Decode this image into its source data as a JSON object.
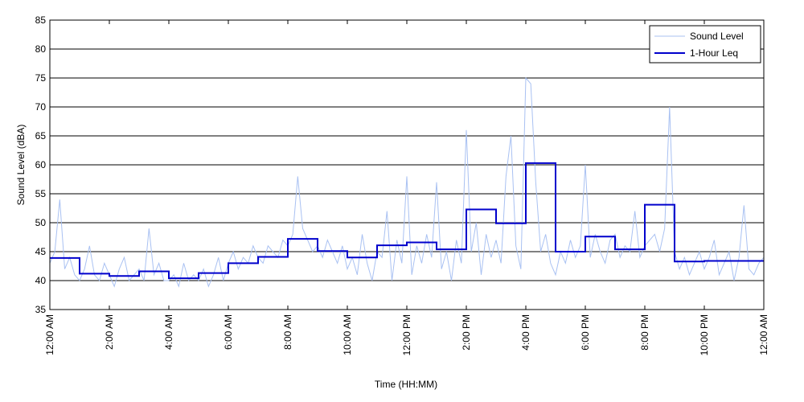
{
  "chart_data": {
    "type": "line",
    "xlabel": "Time (HH:MM)",
    "ylabel": "Sound Level (dBA)",
    "xlim": [
      0,
      1440
    ],
    "ylim": [
      35,
      85
    ],
    "yticks": [
      35,
      40,
      45,
      50,
      55,
      60,
      65,
      70,
      75,
      80,
      85
    ],
    "xticks": [
      {
        "value": 0,
        "label": "12:00 AM"
      },
      {
        "value": 120,
        "label": "2:00 AM"
      },
      {
        "value": 240,
        "label": "4:00 AM"
      },
      {
        "value": 360,
        "label": "6:00 AM"
      },
      {
        "value": 480,
        "label": "8:00 AM"
      },
      {
        "value": 600,
        "label": "10:00 AM"
      },
      {
        "value": 720,
        "label": "12:00 PM"
      },
      {
        "value": 840,
        "label": "2:00 PM"
      },
      {
        "value": 960,
        "label": "4:00 PM"
      },
      {
        "value": 1080,
        "label": "6:00 PM"
      },
      {
        "value": 1200,
        "label": "8:00 PM"
      },
      {
        "value": 1320,
        "label": "10:00 PM"
      },
      {
        "value": 1440,
        "label": "12:00 AM"
      }
    ],
    "grid": true,
    "legend": "upper right",
    "series": [
      {
        "name": "Sound Level",
        "color": "#a9c1f2",
        "width": 1,
        "step": false,
        "x": [
          0,
          10,
          20,
          30,
          40,
          50,
          60,
          70,
          80,
          90,
          100,
          110,
          120,
          130,
          140,
          150,
          160,
          170,
          180,
          190,
          200,
          210,
          220,
          230,
          240,
          250,
          260,
          270,
          280,
          290,
          300,
          310,
          320,
          330,
          340,
          350,
          360,
          370,
          380,
          390,
          400,
          410,
          420,
          430,
          440,
          450,
          460,
          470,
          480,
          490,
          500,
          510,
          520,
          530,
          540,
          550,
          560,
          570,
          580,
          590,
          600,
          610,
          620,
          630,
          640,
          650,
          660,
          670,
          680,
          690,
          700,
          710,
          720,
          730,
          740,
          750,
          760,
          770,
          780,
          790,
          800,
          810,
          820,
          830,
          840,
          850,
          860,
          870,
          880,
          890,
          900,
          910,
          920,
          930,
          940,
          950,
          960,
          970,
          980,
          990,
          1000,
          1010,
          1020,
          1030,
          1040,
          1050,
          1060,
          1070,
          1080,
          1090,
          1100,
          1110,
          1120,
          1130,
          1140,
          1150,
          1160,
          1170,
          1180,
          1190,
          1200,
          1210,
          1220,
          1230,
          1240,
          1250,
          1260,
          1270,
          1280,
          1290,
          1300,
          1310,
          1320,
          1330,
          1340,
          1350,
          1360,
          1370,
          1380,
          1390,
          1400,
          1410,
          1420,
          1430,
          1440
        ],
        "values": [
          43,
          45,
          54,
          42,
          44,
          41,
          40,
          42,
          46,
          41,
          40,
          43,
          41,
          39,
          42,
          44,
          40,
          41,
          42,
          40,
          49,
          41,
          43,
          40,
          40,
          41,
          39,
          43,
          40,
          41,
          40,
          42,
          39,
          41,
          44,
          40,
          43,
          45,
          42,
          44,
          43,
          46,
          44,
          43,
          46,
          45,
          44,
          47,
          46,
          48,
          58,
          49,
          47,
          45,
          46,
          44,
          47,
          45,
          43,
          46,
          42,
          44,
          41,
          48,
          43,
          40,
          45,
          44,
          52,
          40,
          47,
          43,
          58,
          41,
          46,
          43,
          48,
          44,
          57,
          42,
          45,
          40,
          47,
          43,
          66,
          45,
          50,
          41,
          48,
          44,
          47,
          43,
          58,
          65,
          46,
          42,
          75,
          74,
          57,
          45,
          48,
          43,
          41,
          45,
          43,
          47,
          44,
          46,
          60,
          44,
          48,
          45,
          43,
          47,
          48,
          44,
          46,
          45,
          52,
          44,
          46,
          47,
          48,
          45,
          49,
          70,
          45,
          42,
          44,
          41,
          43,
          45,
          42,
          44,
          47,
          41,
          43,
          45,
          40,
          44,
          53,
          42,
          41,
          43,
          44
        ]
      },
      {
        "name": "1-Hour Leq",
        "color": "#0000cc",
        "width": 2,
        "step": true,
        "x": [
          0,
          60,
          120,
          180,
          240,
          300,
          360,
          420,
          480,
          540,
          600,
          660,
          720,
          780,
          840,
          900,
          960,
          1020,
          1080,
          1140,
          1200,
          1260,
          1320,
          1380
        ],
        "values": [
          43.9,
          41.2,
          40.8,
          41.6,
          40.4,
          41.3,
          43.0,
          44.1,
          47.2,
          45.1,
          44.0,
          46.1,
          46.6,
          45.4,
          52.3,
          49.9,
          60.3,
          45.0,
          47.6,
          45.4,
          53.1,
          43.3,
          43.4,
          43.4
        ]
      }
    ]
  }
}
